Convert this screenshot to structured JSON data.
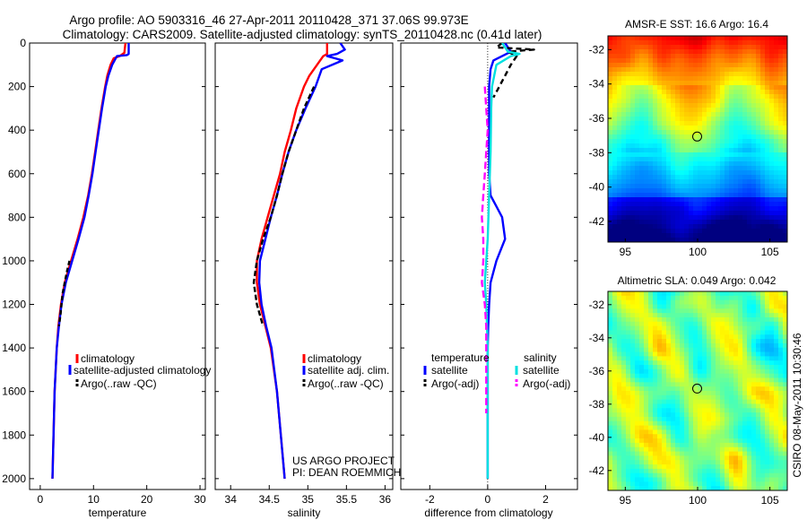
{
  "header": {
    "line1": "Argo profile: AO 5903316_46 27-Apr-2011 20110428_371 37.06S 99.973E",
    "line2": "Climatology: CARS2009. Satellite-adjusted climatology: synTS_20110428.nc (0.41d later)"
  },
  "side_text": "CSIRO 08-May-2011 10:30:46",
  "project_note": {
    "line1": "US ARGO PROJECT",
    "line2": "PI: DEAN ROEMMICH"
  },
  "colors": {
    "climatology": "#ff0000",
    "satellite": "#0000ff",
    "argo": "#000000",
    "sat_salinity": "#00e0e0",
    "argo_adj_salinity": "#ff00ff"
  },
  "chart_data": [
    {
      "type": "line",
      "id": "temperature",
      "xlabel": "temperature",
      "xlim": [
        -2,
        31
      ],
      "ylim": [
        0,
        2050
      ],
      "x_ticks": [
        0,
        10,
        20,
        30
      ],
      "y_ticks": [
        0,
        200,
        400,
        600,
        800,
        1000,
        1200,
        1400,
        1600,
        1800,
        2000
      ],
      "legend": [
        "climatology",
        "satellite-adjusted climatology",
        "Argo(..raw -QC)"
      ],
      "series": [
        {
          "name": "climatology",
          "color": "#ff0000",
          "dash": "",
          "depth": [
            0,
            45,
            60,
            70,
            100,
            150,
            200,
            300,
            400,
            500,
            600,
            700,
            800,
            900,
            1000,
            1100,
            1200,
            1300,
            1400,
            1500,
            1600,
            1800,
            2000
          ],
          "values": [
            16.0,
            15.8,
            14.9,
            13.8,
            13.2,
            12.6,
            12.2,
            11.5,
            10.9,
            10.3,
            9.7,
            9.0,
            8.1,
            7.0,
            5.8,
            4.6,
            3.9,
            3.4,
            3.1,
            2.9,
            2.7,
            2.5,
            2.3
          ]
        },
        {
          "name": "satellite-adjusted climatology",
          "color": "#0000ff",
          "dash": "",
          "depth": [
            0,
            50,
            55,
            60,
            100,
            150,
            200,
            300,
            400,
            500,
            600,
            700,
            800,
            900,
            1000,
            1100,
            1200,
            1300,
            1400,
            1500,
            1600,
            1800,
            2000
          ],
          "values": [
            16.6,
            16.6,
            16.3,
            14.4,
            13.5,
            12.8,
            12.3,
            11.6,
            11.0,
            10.4,
            9.8,
            9.1,
            8.3,
            7.2,
            6.0,
            4.8,
            4.0,
            3.5,
            3.1,
            2.9,
            2.7,
            2.5,
            2.3
          ]
        },
        {
          "name": "Argo(..raw -QC)",
          "color": "#000000",
          "dash": "5,3",
          "depth": [
            1000,
            1050,
            1100,
            1150,
            1200,
            1250,
            1300
          ],
          "values": [
            5.5,
            5.0,
            4.6,
            4.2,
            4.0,
            3.8,
            3.5
          ]
        }
      ]
    },
    {
      "type": "line",
      "id": "salinity",
      "xlabel": "salinity",
      "xlim": [
        33.8,
        36.1
      ],
      "ylim": [
        0,
        2050
      ],
      "x_ticks": [
        34,
        34.5,
        35,
        35.5,
        36
      ],
      "x_tick_labels": [
        "34",
        "34.5",
        "35",
        "35.5",
        "36"
      ],
      "legend": [
        "climatology",
        "satellite adj. clim.",
        "Argo(..raw -QC)"
      ],
      "series": [
        {
          "name": "climatology",
          "color": "#ff0000",
          "dash": "",
          "depth": [
            0,
            50,
            60,
            100,
            150,
            200,
            300,
            400,
            500,
            600,
            700,
            800,
            900,
            1000,
            1100,
            1200,
            1300,
            1400,
            1600,
            1800,
            2000
          ],
          "values": [
            35.25,
            35.25,
            35.2,
            35.12,
            35.02,
            34.95,
            34.85,
            34.78,
            34.7,
            34.64,
            34.56,
            34.48,
            34.4,
            34.34,
            34.34,
            34.38,
            34.45,
            34.52,
            34.6,
            34.65,
            34.7
          ]
        },
        {
          "name": "satellite adj. clim.",
          "color": "#0000ff",
          "dash": "",
          "depth": [
            0,
            30,
            50,
            60,
            80,
            120,
            200,
            300,
            400,
            500,
            600,
            700,
            800,
            900,
            1000,
            1100,
            1200,
            1300,
            1400,
            1600,
            1800,
            2000
          ],
          "values": [
            35.42,
            35.48,
            35.38,
            35.25,
            35.45,
            35.18,
            35.1,
            34.97,
            34.85,
            34.75,
            34.67,
            34.6,
            34.52,
            34.45,
            34.38,
            34.37,
            34.4,
            34.46,
            34.53,
            34.6,
            34.65,
            34.7
          ]
        },
        {
          "name": "Argo(..raw -QC)",
          "color": "#000000",
          "dash": "6,3",
          "depth": [
            200,
            300,
            400,
            500,
            600,
            700,
            800,
            900,
            1000,
            1100,
            1200,
            1300
          ],
          "values": [
            35.08,
            34.95,
            34.85,
            34.75,
            34.67,
            34.6,
            34.52,
            34.42,
            34.34,
            34.3,
            34.34,
            34.42
          ]
        }
      ]
    },
    {
      "type": "line",
      "id": "difference",
      "xlabel": "difference from climatology",
      "xlim": [
        -3,
        3.1
      ],
      "ylim": [
        0,
        2050
      ],
      "x_ticks": [
        -2,
        0,
        2
      ],
      "legend": {
        "temperature": "temperature",
        "salinity": "salinity",
        "sat_t": "satellite",
        "argo_t": "Argo(-adj)",
        "sat_s": "satellite",
        "argo_s": "Argo(-adj)"
      },
      "series": [
        {
          "name": "temperature satellite",
          "color": "#0000ff",
          "dash": "",
          "depth": [
            0,
            40,
            60,
            80,
            120,
            200,
            300,
            400,
            500,
            600,
            700,
            750,
            800,
            900,
            1000,
            1100,
            1200,
            1300,
            1400,
            1600,
            1800,
            2000
          ],
          "values": [
            0.6,
            0.8,
            0.5,
            0.2,
            0.1,
            0.05,
            0.05,
            0.05,
            0.05,
            0.05,
            0.1,
            0.3,
            0.5,
            0.6,
            0.3,
            0.1,
            0.05,
            0.02,
            0.0,
            0.0,
            0.0,
            0.0
          ]
        },
        {
          "name": "temperature Argo(-adj)",
          "color": "#000000",
          "dash": "6,4",
          "depth": [
            0,
            20,
            30,
            40,
            60,
            100,
            150,
            200,
            250
          ],
          "values": [
            0.5,
            0.3,
            1.6,
            0.7,
            1.0,
            0.8,
            0.6,
            0.4,
            0.2
          ]
        },
        {
          "name": "salinity satellite",
          "color": "#00e0e0",
          "dash": "",
          "depth": [
            0,
            40,
            50,
            60,
            100,
            200,
            300,
            500,
            700,
            900,
            1000,
            1100,
            1200,
            1400,
            1600,
            1800,
            2000
          ],
          "values": [
            0.5,
            0.7,
            1.1,
            0.8,
            0.3,
            0.15,
            0.12,
            0.1,
            0.05,
            0.0,
            -0.05,
            -0.1,
            -0.05,
            0.0,
            0.0,
            0.0,
            0.0
          ]
        },
        {
          "name": "salinity Argo(-adj)",
          "color": "#ff00ff",
          "dash": "8,4",
          "depth": [
            200,
            300,
            400,
            500,
            600,
            700,
            800,
            900,
            1000,
            1100,
            1200,
            1300,
            1500,
            1700
          ],
          "values": [
            -0.1,
            -0.05,
            0.0,
            -0.05,
            -0.1,
            -0.15,
            -0.2,
            -0.15,
            -0.15,
            -0.2,
            -0.1,
            -0.05,
            -0.05,
            -0.05
          ]
        }
      ]
    },
    {
      "type": "heatmap",
      "id": "sst_map",
      "title": "AMSR-E SST: 16.6 Argo: 16.4",
      "xlim": [
        93.8,
        106.2
      ],
      "ylim": [
        -43.2,
        -31.2
      ],
      "x_ticks": [
        95,
        100,
        105
      ],
      "y_ticks": [
        -32,
        -34,
        -36,
        -38,
        -40,
        -42
      ],
      "marker": {
        "lon": 99.97,
        "lat": -37.06
      },
      "colormap": "jet"
    },
    {
      "type": "heatmap",
      "id": "sla_map",
      "title": "Altimetric SLA: 0.049 Argo: 0.042",
      "xlim": [
        93.8,
        106.2
      ],
      "ylim": [
        -43.2,
        -31.2
      ],
      "x_ticks": [
        95,
        100,
        105
      ],
      "y_ticks": [
        -32,
        -34,
        -36,
        -38,
        -40,
        -42
      ],
      "marker": {
        "lon": 99.97,
        "lat": -37.06
      },
      "colormap": "jet"
    }
  ]
}
